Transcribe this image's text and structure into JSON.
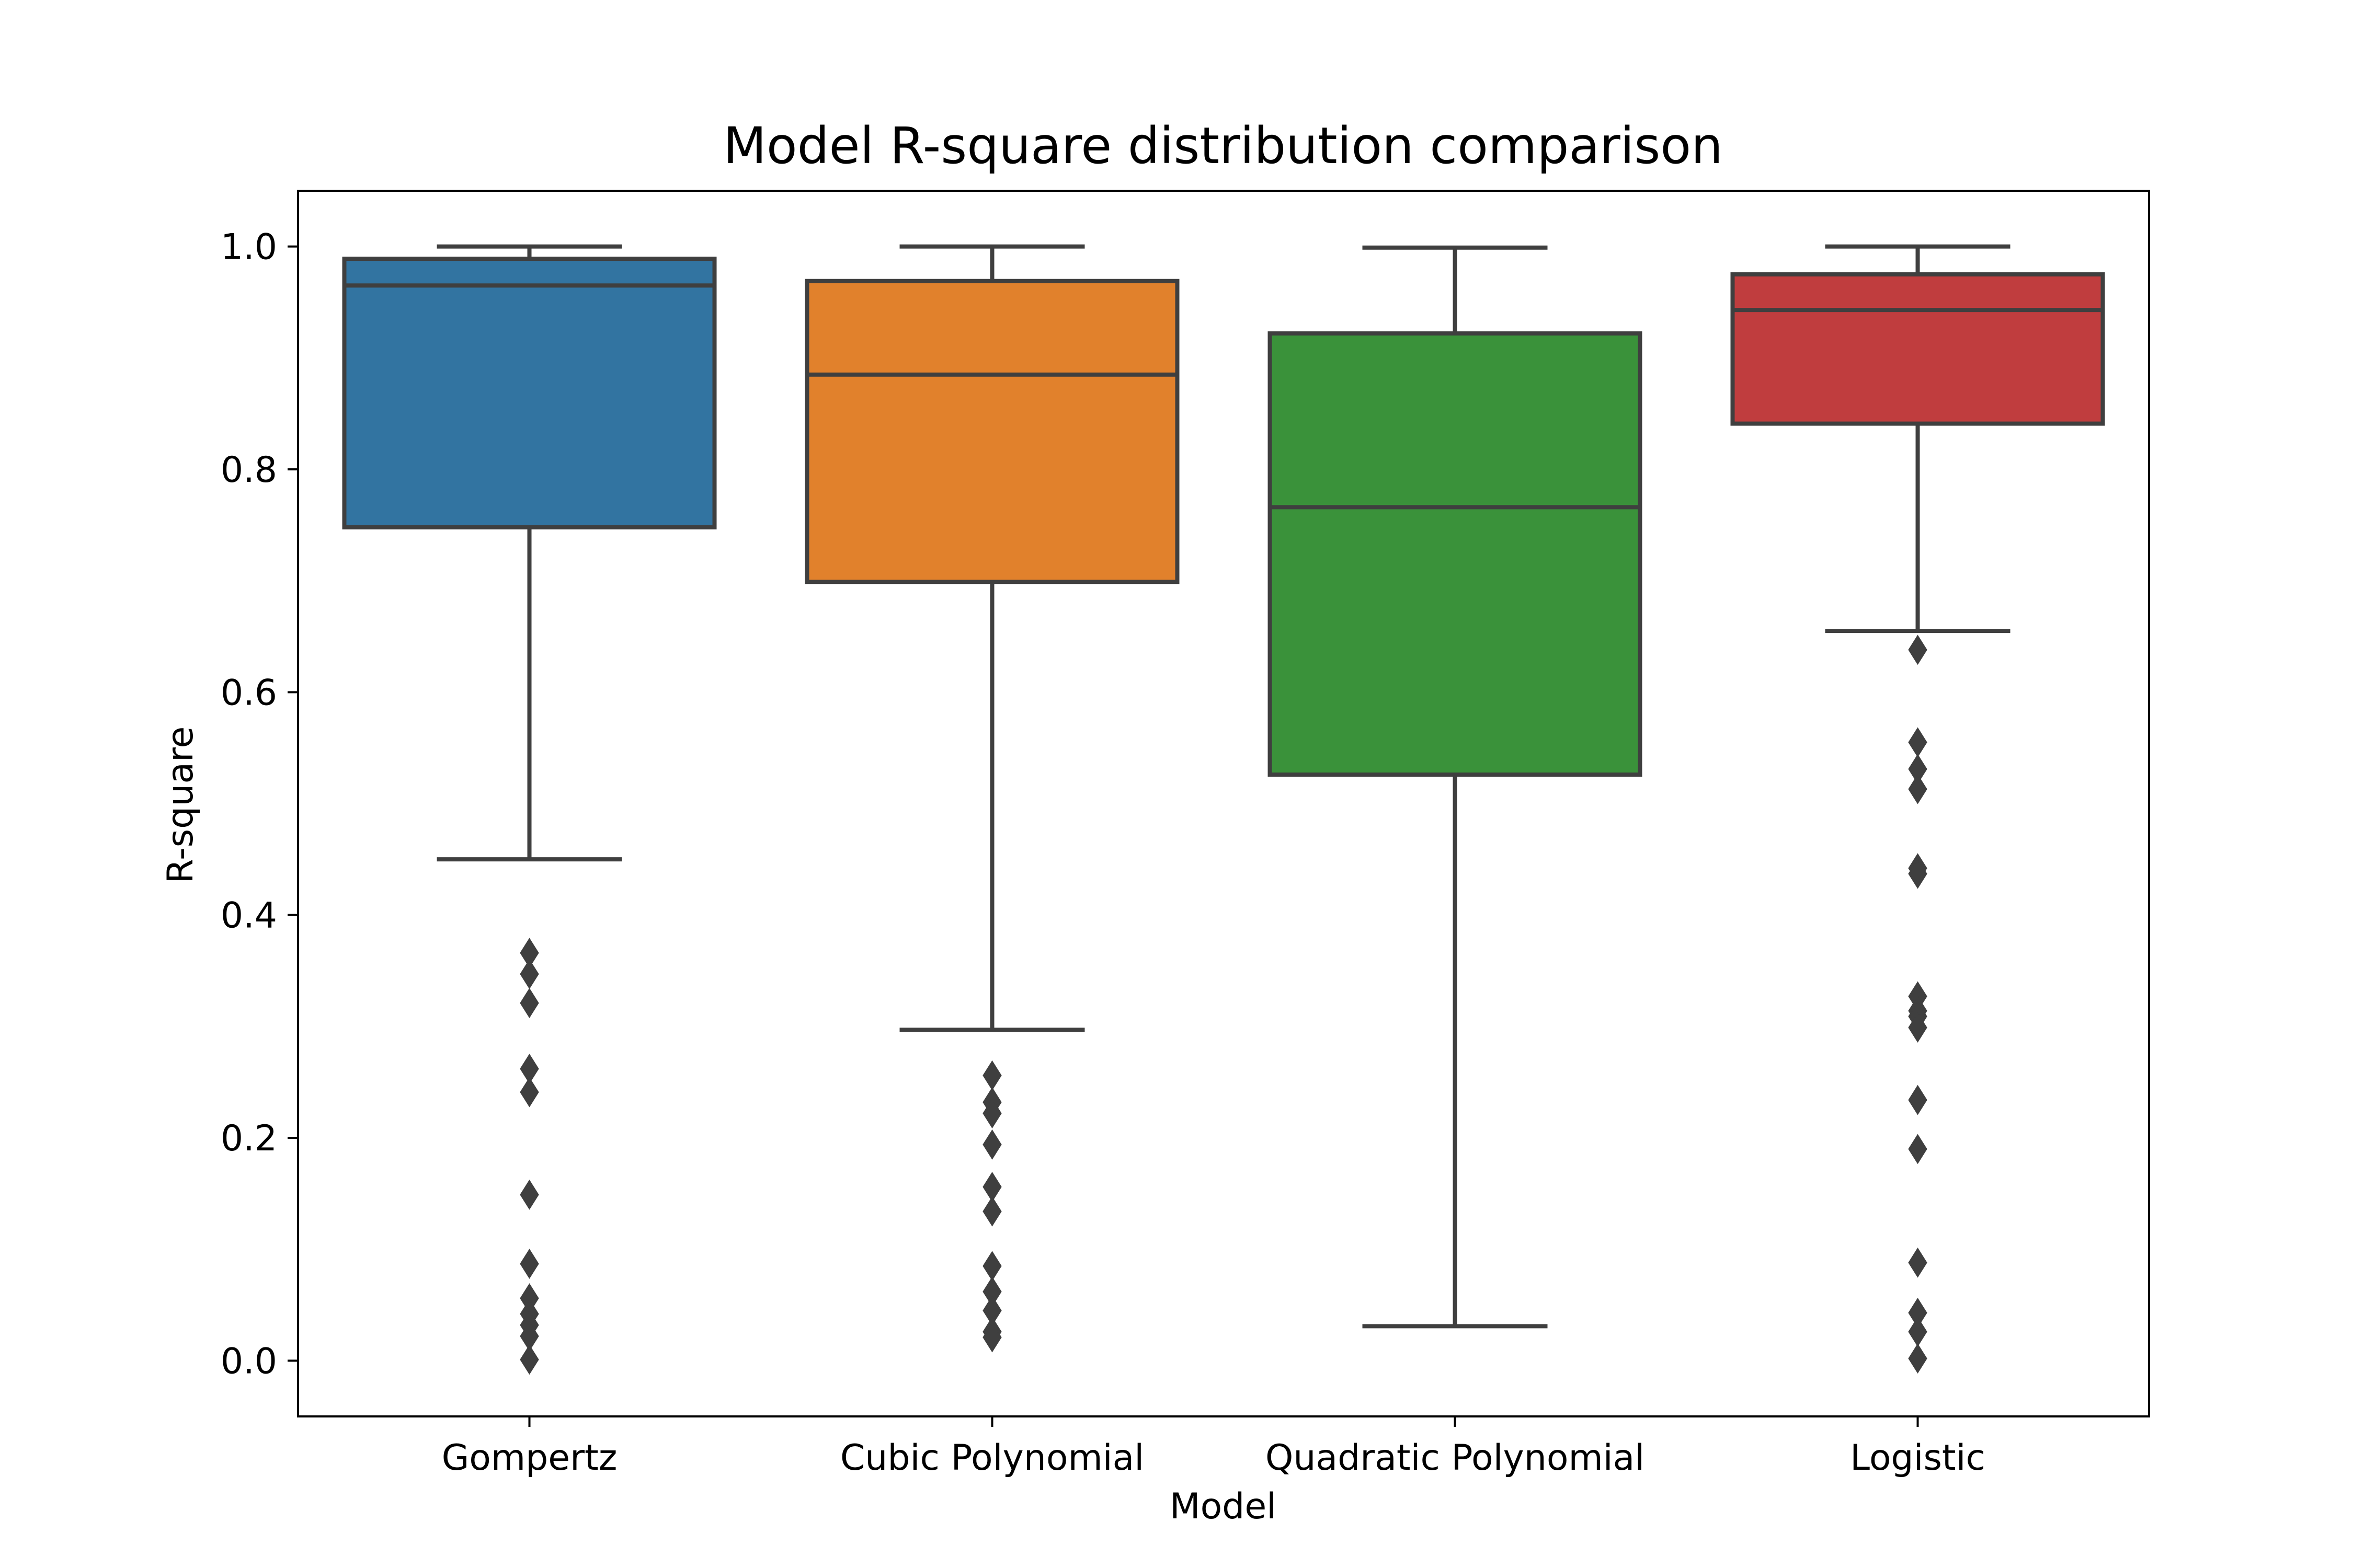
{
  "chart_data": {
    "type": "box",
    "title": "Model R-square distribution comparison",
    "xlabel": "Model",
    "ylabel": "R-square",
    "ylim": [
      -0.05,
      1.05
    ],
    "yticks": [
      0.0,
      0.2,
      0.4,
      0.6,
      0.8,
      1.0
    ],
    "ytick_labels": [
      "0.0",
      "0.2",
      "0.4",
      "0.6",
      "0.8",
      "1.0"
    ],
    "grid": false,
    "categories": [
      "Gompertz",
      "Cubic Polynomial",
      "Quadratic Polynomial",
      "Logistic"
    ],
    "boxes": [
      {
        "name": "Gompertz",
        "color": "#3274a1",
        "whisker_low": 0.45,
        "q1": 0.748,
        "median": 0.965,
        "q3": 0.989,
        "whisker_high": 1.0,
        "outliers": [
          0.366,
          0.347,
          0.321,
          0.262,
          0.241,
          0.149,
          0.087,
          0.056,
          0.042,
          0.032,
          0.022,
          0.001
        ]
      },
      {
        "name": "Cubic Polynomial",
        "color": "#e1812c",
        "whisker_low": 0.297,
        "q1": 0.699,
        "median": 0.885,
        "q3": 0.969,
        "whisker_high": 1.0,
        "outliers": [
          0.256,
          0.232,
          0.222,
          0.194,
          0.156,
          0.134,
          0.085,
          0.062,
          0.045,
          0.026,
          0.021
        ]
      },
      {
        "name": "Quadratic Polynomial",
        "color": "#3a923a",
        "whisker_low": 0.031,
        "q1": 0.526,
        "median": 0.766,
        "q3": 0.922,
        "whisker_high": 0.999,
        "outliers": []
      },
      {
        "name": "Logistic",
        "color": "#c03d3e",
        "whisker_low": 0.655,
        "q1": 0.841,
        "median": 0.943,
        "q3": 0.975,
        "whisker_high": 1.0,
        "outliers": [
          0.638,
          0.555,
          0.531,
          0.513,
          0.442,
          0.437,
          0.327,
          0.314,
          0.309,
          0.299,
          0.234,
          0.19,
          0.088,
          0.043,
          0.026,
          0.002
        ]
      }
    ],
    "line_color": "#3f3f3f"
  }
}
